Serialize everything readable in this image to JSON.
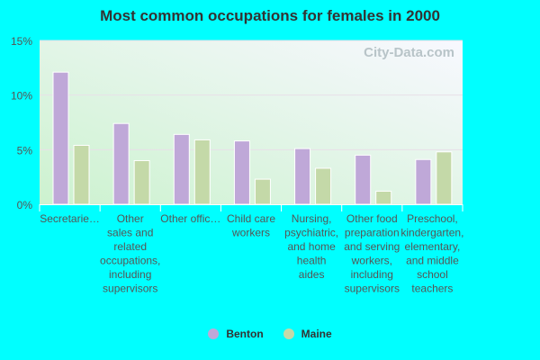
{
  "chart_data": {
    "type": "bar",
    "title": "Most common occupations for females in 2000",
    "categories": [
      [
        "Secretarie…"
      ],
      [
        "Other",
        "sales and",
        "related",
        "occupations,",
        "including",
        "supervisors"
      ],
      [
        "Other offic…"
      ],
      [
        "Child care",
        "workers"
      ],
      [
        "Nursing,",
        "psychiatric,",
        "and home",
        "health",
        "aides"
      ],
      [
        "Other food",
        "preparation",
        "and serving",
        "workers,",
        "including",
        "supervisors"
      ],
      [
        "Preschool,",
        "kindergarten,",
        "elementary,",
        "and middle",
        "school",
        "teachers"
      ]
    ],
    "series": [
      {
        "name": "Benton",
        "color": "#bfa8d8",
        "values": [
          12.1,
          7.4,
          6.4,
          5.8,
          5.1,
          4.5,
          4.1
        ]
      },
      {
        "name": "Maine",
        "color": "#c4d9a8",
        "values": [
          5.4,
          4.0,
          5.9,
          2.3,
          3.3,
          1.2,
          4.8
        ]
      }
    ],
    "yticks": [
      "0%",
      "5%",
      "10%",
      "15%"
    ],
    "ylim": [
      0,
      15
    ],
    "grid": true,
    "legend": "bottom",
    "watermark": "City-Data.com"
  }
}
